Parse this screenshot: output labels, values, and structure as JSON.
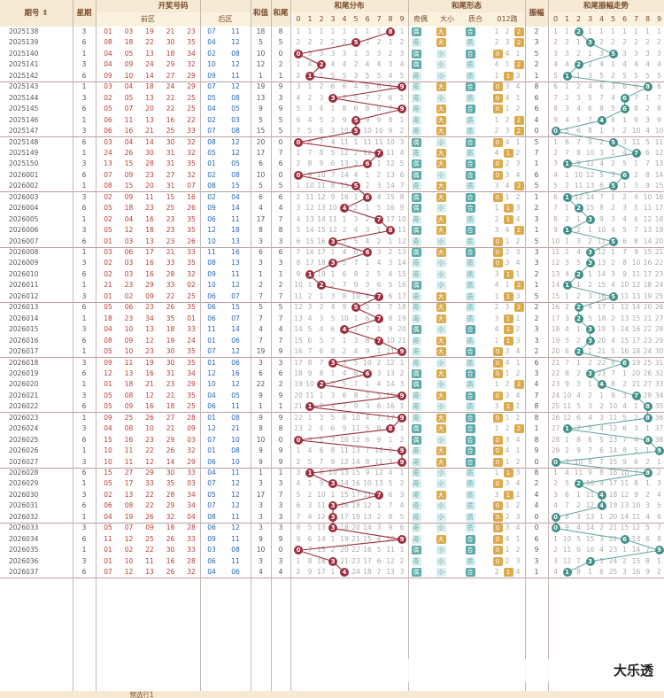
{
  "header": {
    "issue": "期号 ⇕",
    "week": "星期",
    "draw": "开奖号码",
    "front": "前区",
    "back": "后区",
    "sum": "和值",
    "tail": "和尾",
    "dist": "和尾分布",
    "form": "和尾形态",
    "oe": "奇偶",
    "bs": "大小",
    "pc": "质合",
    "r012": "012路",
    "amp": "振幅",
    "trend": "和尾振幅走势",
    "digits": [
      "0",
      "1",
      "2",
      "3",
      "4",
      "5",
      "6",
      "7",
      "8",
      "9"
    ]
  },
  "tags": {
    "odd": "奇",
    "even": "偶",
    "big": "大",
    "small": "小",
    "prime": "质",
    "comp": "合"
  },
  "footer": {
    "label": "预选行1"
  },
  "watermark": "大乐透",
  "rows": [
    {
      "issue": "2025138",
      "week": "3",
      "front": [
        "01",
        "03",
        "19",
        "21",
        "23"
      ],
      "back": [
        "07",
        "11"
      ],
      "sum": "18",
      "tail": 8,
      "amp": 2
    },
    {
      "issue": "2025139",
      "week": "6",
      "front": [
        "08",
        "18",
        "22",
        "30",
        "35"
      ],
      "back": [
        "04",
        "12"
      ],
      "sum": "5",
      "tail": 5,
      "amp": 3
    },
    {
      "issue": "2025140",
      "week": "1",
      "front": [
        "04",
        "05",
        "13",
        "18",
        "34"
      ],
      "back": [
        "02",
        "08"
      ],
      "sum": "10",
      "tail": 0,
      "amp": 5
    },
    {
      "issue": "2025141",
      "week": "3",
      "front": [
        "04",
        "09",
        "24",
        "29",
        "32"
      ],
      "back": [
        "10",
        "12"
      ],
      "sum": "12",
      "tail": 2,
      "amp": 2
    },
    {
      "issue": "2025142",
      "week": "6",
      "front": [
        "09",
        "10",
        "14",
        "27",
        "29"
      ],
      "back": [
        "09",
        "11"
      ],
      "sum": "1",
      "tail": 1,
      "amp": 1
    },
    {
      "issue": "2025143",
      "week": "1",
      "front": [
        "03",
        "04",
        "18",
        "24",
        "29"
      ],
      "back": [
        "07",
        "12"
      ],
      "sum": "19",
      "tail": 9,
      "amp": 8
    },
    {
      "issue": "2025144",
      "week": "3",
      "front": [
        "02",
        "05",
        "13",
        "22",
        "25"
      ],
      "back": [
        "05",
        "08"
      ],
      "sum": "13",
      "tail": 3,
      "amp": 6
    },
    {
      "issue": "2025145",
      "week": "6",
      "front": [
        "05",
        "07",
        "20",
        "22",
        "25"
      ],
      "back": [
        "04",
        "05"
      ],
      "sum": "9",
      "tail": 9,
      "amp": 6
    },
    {
      "issue": "2025146",
      "week": "1",
      "front": [
        "06",
        "11",
        "13",
        "16",
        "22"
      ],
      "back": [
        "02",
        "03"
      ],
      "sum": "5",
      "tail": 5,
      "amp": 4
    },
    {
      "issue": "2025147",
      "week": "3",
      "front": [
        "06",
        "16",
        "21",
        "25",
        "33"
      ],
      "back": [
        "07",
        "08"
      ],
      "sum": "15",
      "tail": 5,
      "amp": 0
    },
    {
      "issue": "2025148",
      "week": "6",
      "front": [
        "03",
        "04",
        "14",
        "30",
        "32"
      ],
      "back": [
        "08",
        "12"
      ],
      "sum": "20",
      "tail": 0,
      "amp": 5
    },
    {
      "issue": "2025149",
      "week": "1",
      "front": [
        "24",
        "26",
        "30",
        "31",
        "32"
      ],
      "back": [
        "05",
        "12"
      ],
      "sum": "17",
      "tail": 7,
      "amp": 7
    },
    {
      "issue": "2025150",
      "week": "3",
      "front": [
        "13",
        "15",
        "28",
        "31",
        "35"
      ],
      "back": [
        "01",
        "05"
      ],
      "sum": "6",
      "tail": 6,
      "amp": 1
    },
    {
      "issue": "2026001",
      "week": "6",
      "front": [
        "07",
        "09",
        "23",
        "27",
        "32"
      ],
      "back": [
        "02",
        "08"
      ],
      "sum": "10",
      "tail": 0,
      "amp": 6
    },
    {
      "issue": "2026002",
      "week": "1",
      "front": [
        "08",
        "15",
        "20",
        "31",
        "07"
      ],
      "back": [
        "08",
        "15"
      ],
      "sum": "5",
      "tail": 5,
      "amp": 5
    },
    {
      "issue": "2026003",
      "week": "3",
      "front": [
        "02",
        "09",
        "11",
        "15",
        "16"
      ],
      "back": [
        "02",
        "04"
      ],
      "sum": "6",
      "tail": 6,
      "amp": 1
    },
    {
      "issue": "2026004",
      "week": "6",
      "front": [
        "05",
        "18",
        "23",
        "25",
        "26"
      ],
      "back": [
        "09",
        "14"
      ],
      "sum": "4",
      "tail": 4,
      "amp": 2
    },
    {
      "issue": "2026005",
      "week": "1",
      "front": [
        "02",
        "04",
        "16",
        "23",
        "35"
      ],
      "back": [
        "06",
        "11"
      ],
      "sum": "17",
      "tail": 7,
      "amp": 3
    },
    {
      "issue": "2026006",
      "week": "3",
      "front": [
        "05",
        "12",
        "18",
        "23",
        "35"
      ],
      "back": [
        "12",
        "18"
      ],
      "sum": "8",
      "tail": 8,
      "amp": 1
    },
    {
      "issue": "2026007",
      "week": "6",
      "front": [
        "01",
        "03",
        "13",
        "23",
        "26"
      ],
      "back": [
        "10",
        "13"
      ],
      "sum": "3",
      "tail": 3,
      "amp": 5
    },
    {
      "issue": "2026008",
      "week": "1",
      "front": [
        "03",
        "06",
        "17",
        "21",
        "33"
      ],
      "back": [
        "11",
        "16"
      ],
      "sum": "6",
      "tail": 6,
      "amp": 3
    },
    {
      "issue": "2026009",
      "week": "3",
      "front": [
        "02",
        "03",
        "16",
        "33",
        "35"
      ],
      "back": [
        "08",
        "13"
      ],
      "sum": "3",
      "tail": 3,
      "amp": 3
    },
    {
      "issue": "2026010",
      "week": "6",
      "front": [
        "02",
        "03",
        "16",
        "28",
        "32"
      ],
      "back": [
        "09",
        "11"
      ],
      "sum": "1",
      "tail": 1,
      "amp": 2
    },
    {
      "issue": "2026011",
      "week": "1",
      "front": [
        "21",
        "23",
        "29",
        "33",
        "02"
      ],
      "back": [
        "10",
        "12"
      ],
      "sum": "2",
      "tail": 2,
      "amp": 1
    },
    {
      "issue": "2026012",
      "week": "3",
      "front": [
        "01",
        "02",
        "09",
        "22",
        "25"
      ],
      "back": [
        "06",
        "07"
      ],
      "sum": "7",
      "tail": 7,
      "amp": 5
    },
    {
      "issue": "2026013",
      "week": "6",
      "front": [
        "05",
        "06",
        "23",
        "26",
        "35"
      ],
      "back": [
        "06",
        "15"
      ],
      "sum": "5",
      "tail": 5,
      "amp": 2
    },
    {
      "issue": "2026014",
      "week": "1",
      "front": [
        "18",
        "23",
        "34",
        "35",
        "01"
      ],
      "back": [
        "06",
        "07"
      ],
      "sum": "7",
      "tail": 7,
      "amp": 2
    },
    {
      "issue": "2026015",
      "week": "3",
      "front": [
        "04",
        "10",
        "13",
        "18",
        "33"
      ],
      "back": [
        "11",
        "14"
      ],
      "sum": "4",
      "tail": 4,
      "amp": 3
    },
    {
      "issue": "2026016",
      "week": "6",
      "front": [
        "08",
        "09",
        "12",
        "19",
        "24"
      ],
      "back": [
        "01",
        "06"
      ],
      "sum": "7",
      "tail": 7,
      "amp": 3
    },
    {
      "issue": "2026017",
      "week": "1",
      "front": [
        "05",
        "10",
        "23",
        "30",
        "35"
      ],
      "back": [
        "07",
        "12"
      ],
      "sum": "19",
      "tail": 9,
      "amp": 2
    },
    {
      "issue": "2026018",
      "week": "3",
      "front": [
        "09",
        "11",
        "19",
        "30",
        "35"
      ],
      "back": [
        "01",
        "06"
      ],
      "sum": "3",
      "tail": 3,
      "amp": 6
    },
    {
      "issue": "2026019",
      "week": "6",
      "front": [
        "12",
        "13",
        "16",
        "31",
        "34"
      ],
      "back": [
        "12",
        "16"
      ],
      "sum": "6",
      "tail": 6,
      "amp": 3
    },
    {
      "issue": "2026020",
      "week": "1",
      "front": [
        "01",
        "18",
        "21",
        "23",
        "29"
      ],
      "back": [
        "10",
        "12"
      ],
      "sum": "22",
      "tail": 2,
      "amp": 4
    },
    {
      "issue": "2026021",
      "week": "3",
      "front": [
        "05",
        "08",
        "12",
        "21",
        "35"
      ],
      "back": [
        "04",
        "05"
      ],
      "sum": "9",
      "tail": 9,
      "amp": 7
    },
    {
      "issue": "2026022",
      "week": "6",
      "front": [
        "05",
        "09",
        "16",
        "18",
        "25"
      ],
      "back": [
        "06",
        "11"
      ],
      "sum": "1",
      "tail": 1,
      "amp": 8
    },
    {
      "issue": "2026023",
      "week": "1",
      "front": [
        "09",
        "25",
        "26",
        "27",
        "28"
      ],
      "back": [
        "01",
        "08"
      ],
      "sum": "9",
      "tail": 9,
      "amp": 8
    },
    {
      "issue": "2026024",
      "week": "3",
      "front": [
        "04",
        "08",
        "10",
        "21",
        "09"
      ],
      "back": [
        "12",
        "21"
      ],
      "sum": "8",
      "tail": 8,
      "amp": 1
    },
    {
      "issue": "2026025",
      "week": "6",
      "front": [
        "15",
        "16",
        "23",
        "29",
        "03"
      ],
      "back": [
        "07",
        "10"
      ],
      "sum": "10",
      "tail": 0,
      "amp": 8
    },
    {
      "issue": "2026026",
      "week": "1",
      "front": [
        "10",
        "11",
        "22",
        "26",
        "32"
      ],
      "back": [
        "01",
        "08"
      ],
      "sum": "9",
      "tail": 9,
      "amp": 9
    },
    {
      "issue": "2026027",
      "week": "3",
      "front": [
        "10",
        "11",
        "12",
        "14",
        "29"
      ],
      "back": [
        "06",
        "10"
      ],
      "sum": "9",
      "tail": 9,
      "amp": 0
    },
    {
      "issue": "2026028",
      "week": "6",
      "front": [
        "15",
        "27",
        "29",
        "30",
        "33"
      ],
      "back": [
        "04",
        "11"
      ],
      "sum": "1",
      "tail": 1,
      "amp": 8
    },
    {
      "issue": "2026029",
      "week": "1",
      "front": [
        "05",
        "17",
        "33",
        "35",
        "03"
      ],
      "back": [
        "07",
        "12"
      ],
      "sum": "3",
      "tail": 3,
      "amp": 2
    },
    {
      "issue": "2026030",
      "week": "3",
      "front": [
        "02",
        "13",
        "22",
        "28",
        "34"
      ],
      "back": [
        "05",
        "12"
      ],
      "sum": "17",
      "tail": 7,
      "amp": 4
    },
    {
      "issue": "2026031",
      "week": "6",
      "front": [
        "06",
        "08",
        "22",
        "29",
        "34"
      ],
      "back": [
        "07",
        "12"
      ],
      "sum": "3",
      "tail": 3,
      "amp": 4
    },
    {
      "issue": "2026032",
      "week": "1",
      "front": [
        "04",
        "19",
        "26",
        "32",
        "04"
      ],
      "back": [
        "08",
        "11"
      ],
      "sum": "3",
      "tail": 3,
      "amp": 0
    },
    {
      "issue": "2026033",
      "week": "3",
      "front": [
        "05",
        "07",
        "09",
        "18",
        "28"
      ],
      "back": [
        "06",
        "12"
      ],
      "sum": "3",
      "tail": 3,
      "amp": 0
    },
    {
      "issue": "2026034",
      "week": "6",
      "front": [
        "11",
        "12",
        "25",
        "26",
        "33"
      ],
      "back": [
        "09",
        "11"
      ],
      "sum": "9",
      "tail": 9,
      "amp": 6
    },
    {
      "issue": "2026035",
      "week": "1",
      "front": [
        "01",
        "02",
        "22",
        "30",
        "33"
      ],
      "back": [
        "03",
        "08"
      ],
      "sum": "10",
      "tail": 0,
      "amp": 9
    },
    {
      "issue": "2026036",
      "week": "3",
      "front": [
        "01",
        "10",
        "11",
        "16",
        "28"
      ],
      "back": [
        "06",
        "11"
      ],
      "sum": "3",
      "tail": 3,
      "amp": 3
    },
    {
      "issue": "2026037",
      "week": "6",
      "front": [
        "07",
        "12",
        "13",
        "26",
        "32"
      ],
      "back": [
        "04",
        "06"
      ],
      "sum": "4",
      "tail": 4,
      "amp": 1
    }
  ]
}
